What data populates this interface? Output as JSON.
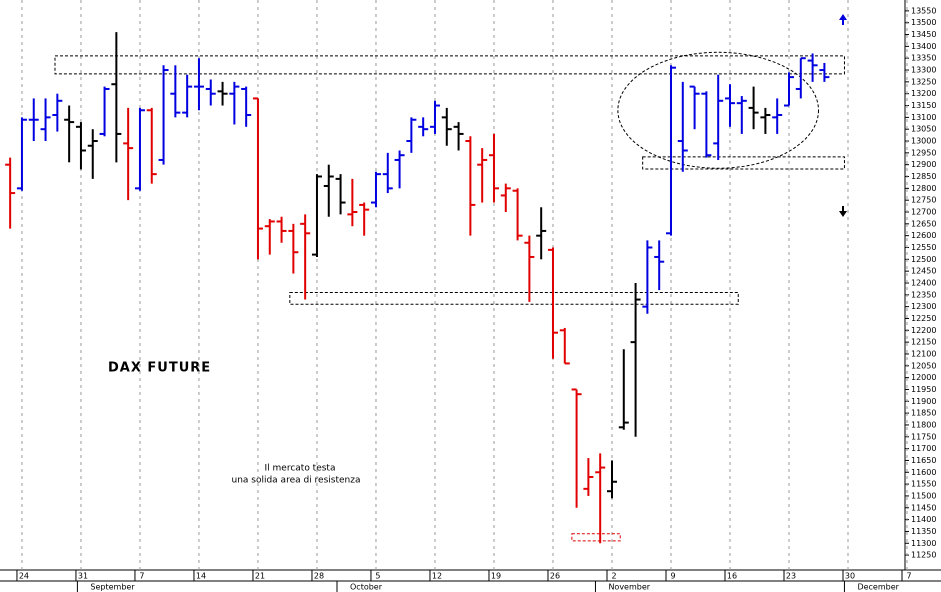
{
  "chart_data": {
    "type": "ohlc",
    "title": "DAX FUTURE",
    "annotation": [
      "Il mercato testa",
      "una solida area di resistenza"
    ],
    "xlim": [
      -1.86,
      74.83
    ],
    "ylim": [
      11187,
      13596
    ],
    "xticks": [
      {
        "value": 0,
        "label": "24"
      },
      {
        "value": 5,
        "label": "31"
      },
      {
        "value": 10,
        "label": "7"
      },
      {
        "value": 15,
        "label": "14"
      },
      {
        "value": 20,
        "label": "21"
      },
      {
        "value": 25,
        "label": "28"
      },
      {
        "value": 30,
        "label": "5"
      },
      {
        "value": 35,
        "label": "12"
      },
      {
        "value": 40,
        "label": "19"
      },
      {
        "value": 45,
        "label": "26"
      },
      {
        "value": 50,
        "label": "2"
      },
      {
        "value": 55,
        "label": "9"
      },
      {
        "value": 60,
        "label": "16"
      },
      {
        "value": 65,
        "label": "23"
      },
      {
        "value": 70,
        "label": "30"
      },
      {
        "value": 75,
        "label": "7"
      }
    ],
    "month_ticks": [
      {
        "value": 5.8,
        "label": "September"
      },
      {
        "value": 27.8,
        "label": "October"
      },
      {
        "value": 49.7,
        "label": "November"
      },
      {
        "value": 70.8,
        "label": "December"
      }
    ],
    "yticks": [
      11250,
      11300,
      11350,
      11400,
      11450,
      11500,
      11550,
      11600,
      11650,
      11700,
      11750,
      11800,
      11850,
      11900,
      11950,
      12000,
      12050,
      12100,
      12150,
      12200,
      12250,
      12300,
      12350,
      12400,
      12450,
      12500,
      12550,
      12600,
      12650,
      12700,
      12750,
      12800,
      12850,
      12900,
      12950,
      13000,
      13050,
      13100,
      13150,
      13200,
      13250,
      13300,
      13350,
      13400,
      13450,
      13500,
      13550
    ],
    "grid": true,
    "bars": [
      {
        "x": -1,
        "open": 12900,
        "high": 12930,
        "low": 12630,
        "close": 12780,
        "color": "#e00000"
      },
      {
        "x": 0,
        "open": 12800,
        "high": 13100,
        "low": 12790,
        "close": 13090,
        "color": "#0000e0"
      },
      {
        "x": 1,
        "open": 13090,
        "high": 13180,
        "low": 13000,
        "close": 13090,
        "color": "#0000e0"
      },
      {
        "x": 2,
        "open": 13050,
        "high": 13180,
        "low": 13000,
        "close": 13100,
        "color": "#0000e0"
      },
      {
        "x": 3,
        "open": 13110,
        "high": 13200,
        "low": 13040,
        "close": 13170,
        "color": "#0000e0"
      },
      {
        "x": 4,
        "open": 13090,
        "high": 13150,
        "low": 12910,
        "close": 13080,
        "color": "#000000"
      },
      {
        "x": 5,
        "open": 13060,
        "high": 13080,
        "low": 12880,
        "close": 12960,
        "color": "#000000"
      },
      {
        "x": 6,
        "open": 12980,
        "high": 13050,
        "low": 12840,
        "close": 13000,
        "color": "#000000"
      },
      {
        "x": 7,
        "open": 13030,
        "high": 13230,
        "low": 13020,
        "close": 13220,
        "color": "#0000e0"
      },
      {
        "x": 8,
        "open": 13240,
        "high": 13460,
        "low": 12910,
        "close": 13030,
        "color": "#000000"
      },
      {
        "x": 9,
        "open": 12990,
        "high": 13140,
        "low": 12750,
        "close": 12970,
        "color": "#e00000"
      },
      {
        "x": 10,
        "open": 12800,
        "high": 13140,
        "low": 12790,
        "close": 13130,
        "color": "#0000e0"
      },
      {
        "x": 11,
        "open": 13130,
        "high": 13140,
        "low": 12820,
        "close": 12860,
        "color": "#e00000"
      },
      {
        "x": 12,
        "open": 12920,
        "high": 13320,
        "low": 12900,
        "close": 13300,
        "color": "#0000e0"
      },
      {
        "x": 13,
        "open": 13200,
        "high": 13320,
        "low": 13100,
        "close": 13120,
        "color": "#0000e0"
      },
      {
        "x": 14,
        "open": 13120,
        "high": 13280,
        "low": 13100,
        "close": 13230,
        "color": "#0000e0"
      },
      {
        "x": 15,
        "open": 13230,
        "high": 13350,
        "low": 13130,
        "close": 13230,
        "color": "#0000e0"
      },
      {
        "x": 16,
        "open": 13220,
        "high": 13260,
        "low": 13150,
        "close": 13200,
        "color": "#0000e0"
      },
      {
        "x": 17,
        "open": 13210,
        "high": 13250,
        "low": 13150,
        "close": 13200,
        "color": "#000000"
      },
      {
        "x": 18,
        "open": 13200,
        "high": 13250,
        "low": 13070,
        "close": 13230,
        "color": "#0000e0"
      },
      {
        "x": 19,
        "open": 13220,
        "high": 13230,
        "low": 13060,
        "close": 13110,
        "color": "#0000e0"
      },
      {
        "x": 20,
        "open": 13180,
        "high": 13180,
        "low": 12500,
        "close": 12630,
        "color": "#e00000"
      },
      {
        "x": 21,
        "open": 12640,
        "high": 12670,
        "low": 12520,
        "close": 12660,
        "color": "#e00000"
      },
      {
        "x": 22,
        "open": 12660,
        "high": 12680,
        "low": 12570,
        "close": 12620,
        "color": "#e00000"
      },
      {
        "x": 23,
        "open": 12620,
        "high": 12650,
        "low": 12440,
        "close": 12530,
        "color": "#e00000"
      },
      {
        "x": 24,
        "open": 12650,
        "high": 12690,
        "low": 12330,
        "close": 12610,
        "color": "#e00000"
      },
      {
        "x": 25,
        "open": 12520,
        "high": 12860,
        "low": 12510,
        "close": 12850,
        "color": "#000000"
      },
      {
        "x": 26,
        "open": 12810,
        "high": 12900,
        "low": 12680,
        "close": 12850,
        "color": "#000000"
      },
      {
        "x": 27,
        "open": 12840,
        "high": 12860,
        "low": 12690,
        "close": 12740,
        "color": "#000000"
      },
      {
        "x": 28,
        "open": 12690,
        "high": 12840,
        "low": 12640,
        "close": 12700,
        "color": "#e00000"
      },
      {
        "x": 29,
        "open": 12730,
        "high": 12740,
        "low": 12600,
        "close": 12710,
        "color": "#e00000"
      },
      {
        "x": 30,
        "open": 12740,
        "high": 12870,
        "low": 12720,
        "close": 12860,
        "color": "#0000e0"
      },
      {
        "x": 31,
        "open": 12860,
        "high": 12950,
        "low": 12780,
        "close": 12800,
        "color": "#0000e0"
      },
      {
        "x": 32,
        "open": 12920,
        "high": 12960,
        "low": 12800,
        "close": 12940,
        "color": "#0000e0"
      },
      {
        "x": 33,
        "open": 13000,
        "high": 13100,
        "low": 12950,
        "close": 13090,
        "color": "#0000e0"
      },
      {
        "x": 34,
        "open": 13060,
        "high": 13100,
        "low": 13020,
        "close": 13050,
        "color": "#0000e0"
      },
      {
        "x": 35,
        "open": 13060,
        "high": 13170,
        "low": 13030,
        "close": 13150,
        "color": "#0000e0"
      },
      {
        "x": 36,
        "open": 13100,
        "high": 13140,
        "low": 12980,
        "close": 13050,
        "color": "#000000"
      },
      {
        "x": 37,
        "open": 13060,
        "high": 13080,
        "low": 12960,
        "close": 13030,
        "color": "#000000"
      },
      {
        "x": 38,
        "open": 13000,
        "high": 13020,
        "low": 12600,
        "close": 12730,
        "color": "#e00000"
      },
      {
        "x": 39,
        "open": 12900,
        "high": 12970,
        "low": 12740,
        "close": 12920,
        "color": "#e00000"
      },
      {
        "x": 40,
        "open": 12940,
        "high": 13030,
        "low": 12740,
        "close": 12800,
        "color": "#e00000"
      },
      {
        "x": 41,
        "open": 12770,
        "high": 12820,
        "low": 12700,
        "close": 12800,
        "color": "#e00000"
      },
      {
        "x": 42,
        "open": 12790,
        "high": 12800,
        "low": 12580,
        "close": 12600,
        "color": "#e00000"
      },
      {
        "x": 43,
        "open": 12570,
        "high": 12600,
        "low": 12320,
        "close": 12510,
        "color": "#e00000"
      },
      {
        "x": 44,
        "open": 12600,
        "high": 12720,
        "low": 12500,
        "close": 12620,
        "color": "#000000"
      },
      {
        "x": 45,
        "open": 12540,
        "high": 12550,
        "low": 12080,
        "close": 12190,
        "color": "#e00000"
      },
      {
        "x": 46,
        "open": 12200,
        "high": 12210,
        "low": 12060,
        "close": 12060,
        "color": "#e00000"
      },
      {
        "x": 47,
        "open": 11950,
        "high": 11950,
        "low": 11450,
        "close": 11930,
        "color": "#e00000"
      },
      {
        "x": 48,
        "open": 11530,
        "high": 11660,
        "low": 11500,
        "close": 11580,
        "color": "#e00000"
      },
      {
        "x": 49,
        "open": 11600,
        "high": 11680,
        "low": 11300,
        "close": 11620,
        "color": "#e00000"
      },
      {
        "x": 50,
        "open": 11520,
        "high": 11650,
        "low": 11490,
        "close": 11560,
        "color": "#000000"
      },
      {
        "x": 51,
        "open": 11790,
        "high": 12120,
        "low": 11780,
        "close": 11810,
        "color": "#000000"
      },
      {
        "x": 52,
        "open": 12150,
        "high": 12400,
        "low": 11750,
        "close": 12330,
        "color": "#000000"
      },
      {
        "x": 53,
        "open": 12300,
        "high": 12580,
        "low": 12270,
        "close": 12550,
        "color": "#0000e0"
      },
      {
        "x": 54,
        "open": 12510,
        "high": 12580,
        "low": 12370,
        "close": 12490,
        "color": "#0000e0"
      },
      {
        "x": 55,
        "open": 12610,
        "high": 13320,
        "low": 12600,
        "close": 13310,
        "color": "#0000e0"
      },
      {
        "x": 56,
        "open": 13000,
        "high": 13250,
        "low": 12870,
        "close": 12960,
        "color": "#0000e0"
      },
      {
        "x": 57,
        "open": 13230,
        "high": 13230,
        "low": 13050,
        "close": 13200,
        "color": "#0000e0"
      },
      {
        "x": 58,
        "open": 13200,
        "high": 13210,
        "low": 12930,
        "close": 12940,
        "color": "#0000e0"
      },
      {
        "x": 59,
        "open": 12990,
        "high": 13280,
        "low": 12920,
        "close": 13170,
        "color": "#0000e0"
      },
      {
        "x": 60,
        "open": 13180,
        "high": 13240,
        "low": 13060,
        "close": 13160,
        "color": "#0000e0"
      },
      {
        "x": 61,
        "open": 13160,
        "high": 13190,
        "low": 13030,
        "close": 13170,
        "color": "#0000e0"
      },
      {
        "x": 62,
        "open": 13140,
        "high": 13230,
        "low": 13050,
        "close": 13120,
        "color": "#000000"
      },
      {
        "x": 63,
        "open": 13100,
        "high": 13140,
        "low": 13030,
        "close": 13110,
        "color": "#000000"
      },
      {
        "x": 64,
        "open": 13100,
        "high": 13180,
        "low": 13030,
        "close": 13110,
        "color": "#0000e0"
      },
      {
        "x": 65,
        "open": 13150,
        "high": 13290,
        "low": 13150,
        "close": 13270,
        "color": "#0000e0"
      },
      {
        "x": 66,
        "open": 13220,
        "high": 13350,
        "low": 13180,
        "close": 13350,
        "color": "#0000e0"
      },
      {
        "x": 67,
        "open": 13340,
        "high": 13370,
        "low": 13250,
        "close": 13320,
        "color": "#0000e0"
      },
      {
        "x": 68,
        "open": 13300,
        "high": 13330,
        "low": 13250,
        "close": 13270,
        "color": "#0000e0"
      }
    ],
    "zones": [
      {
        "x": [
          2.8,
          69.7
        ],
        "y": [
          13284,
          13360
        ],
        "color": "#000000"
      },
      {
        "x": [
          52.6,
          69.7
        ],
        "y": [
          12882,
          12933
        ],
        "color": "#000000"
      },
      {
        "x": [
          22.7,
          60.7
        ],
        "y": [
          12310,
          12360
        ],
        "color": "#000000"
      },
      {
        "x": [
          46.6,
          50.7
        ],
        "y": [
          11310,
          11340
        ],
        "color": "#e00000"
      }
    ],
    "ellipse": {
      "cx": 59,
      "cy": 13130,
      "rx": 8.5,
      "ry": 245
    }
  }
}
